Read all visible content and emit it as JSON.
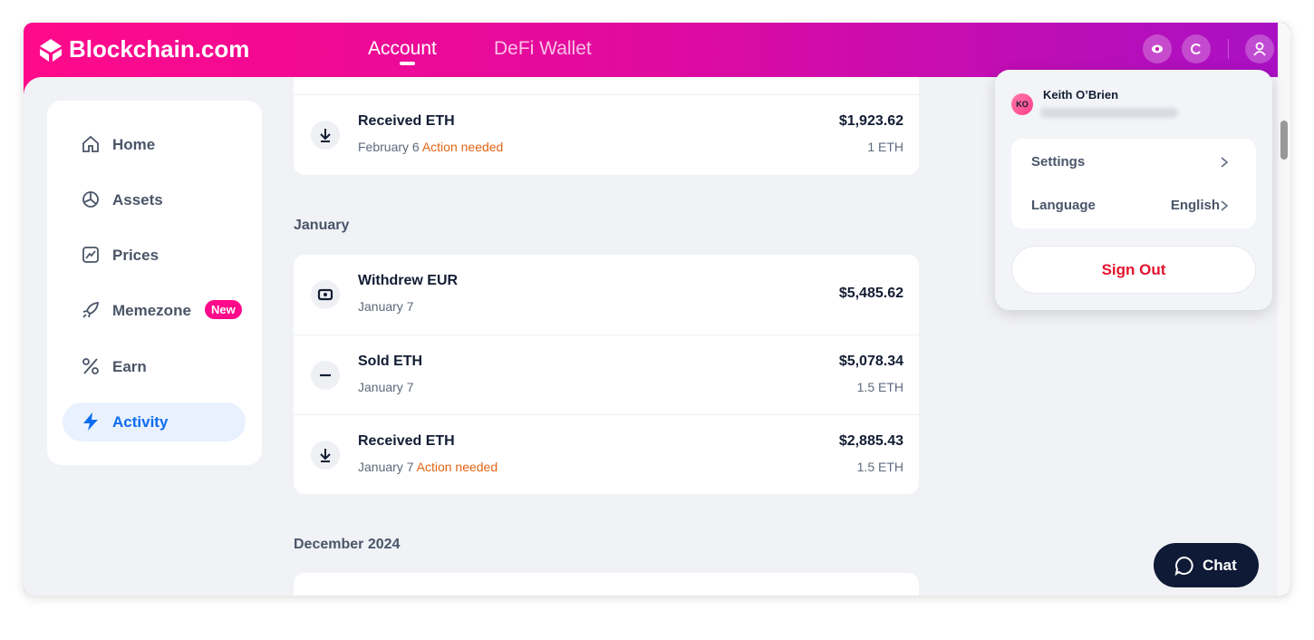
{
  "header": {
    "logo": "Blockchain.com",
    "tabs": [
      "Account",
      "DeFi Wallet"
    ]
  },
  "sidebar": {
    "items": [
      {
        "label": "Home"
      },
      {
        "label": "Assets"
      },
      {
        "label": "Prices"
      },
      {
        "label": "Memezone",
        "badge": "New"
      },
      {
        "label": "Earn"
      },
      {
        "label": "Activity"
      }
    ]
  },
  "activity": {
    "groups": [
      {
        "rows": [
          {
            "title": "Received ETH",
            "date": "February 6",
            "status": "Action needed",
            "amount": "$1,923.62",
            "crypto": "1 ETH"
          }
        ]
      },
      {
        "month": "January",
        "rows": [
          {
            "title": "Withdrew EUR",
            "date": "January 7",
            "amount": "$5,485.62"
          },
          {
            "title": "Sold ETH",
            "date": "January 7",
            "amount": "$5,078.34",
            "crypto": "1.5 ETH"
          },
          {
            "title": "Received ETH",
            "date": "January 7",
            "status": "Action needed",
            "amount": "$2,885.43",
            "crypto": "1.5 ETH"
          }
        ]
      },
      {
        "month": "December 2024"
      }
    ]
  },
  "menu": {
    "initials": "KO",
    "name": "Keith O’Brien",
    "items": [
      {
        "label": "Settings"
      },
      {
        "label": "Language",
        "value": "English"
      }
    ],
    "sign_out": "Sign Out"
  },
  "chat": "Chat"
}
